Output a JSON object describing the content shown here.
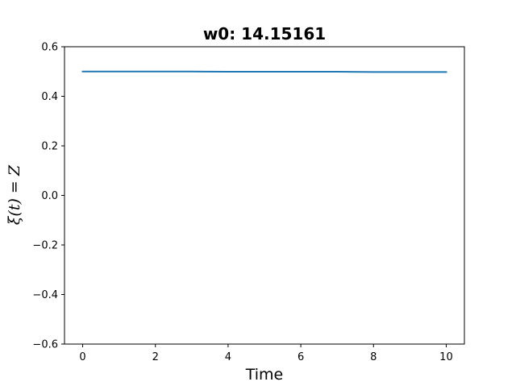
{
  "chart_data": {
    "type": "line",
    "title": "w0: 14.15161",
    "xlabel": "Time",
    "ylabel": "ξ(t) = Z",
    "xlim": [
      -0.5,
      10.5
    ],
    "ylim": [
      -0.6,
      0.6
    ],
    "xticks": [
      0,
      2,
      4,
      6,
      8,
      10
    ],
    "xtick_labels": [
      "0",
      "2",
      "4",
      "6",
      "8",
      "10"
    ],
    "yticks": [
      -0.6,
      -0.4,
      -0.2,
      0.0,
      0.2,
      0.4,
      0.6
    ],
    "ytick_labels": [
      "−0.6",
      "−0.4",
      "−0.2",
      "0.0",
      "0.2",
      "0.4",
      "0.6"
    ],
    "grid": false,
    "series": [
      {
        "color": "#1f77b4",
        "x": [
          0,
          1,
          2,
          3,
          4,
          5,
          6,
          7,
          8,
          9,
          10
        ],
        "y": [
          0.5,
          0.5,
          0.5,
          0.5,
          0.499,
          0.499,
          0.499,
          0.499,
          0.498,
          0.498,
          0.498
        ]
      }
    ]
  }
}
